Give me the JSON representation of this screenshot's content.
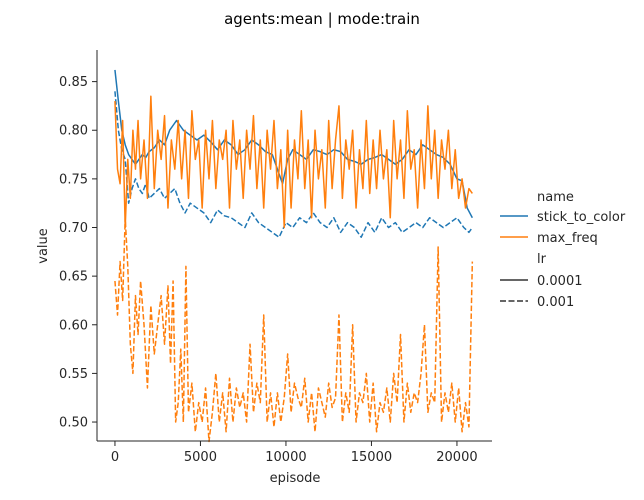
{
  "chart_data": {
    "type": "line",
    "title": "agents:mean | mode:train",
    "xlabel": "episode",
    "ylabel": "value",
    "xlim": [
      -1050,
      22050
    ],
    "ylim": [
      0.4805,
      0.8825
    ],
    "xticks": [
      0,
      5000,
      10000,
      15000,
      20000
    ],
    "xtick_labels": [
      "0",
      "5000",
      "10000",
      "15000",
      "20000"
    ],
    "yticks": [
      0.5,
      0.55,
      0.6,
      0.65,
      0.7,
      0.75,
      0.8,
      0.85
    ],
    "ytick_labels": [
      "0.50",
      "0.55",
      "0.60",
      "0.65",
      "0.70",
      "0.75",
      "0.80",
      "0.85"
    ],
    "grid": false,
    "legend": {
      "placement": "right",
      "hue_title": "name",
      "hue_entries": [
        "stick_to_color",
        "max_freq"
      ],
      "style_title": "lr",
      "style_entries": [
        "0.0001",
        "0.001"
      ]
    },
    "colors": {
      "stick_to_color": "#1f77b4",
      "max_freq": "#ff7f0e",
      "legend_style": "#333333"
    },
    "series": [
      {
        "name": "stick_to_color",
        "lr": "0.0001",
        "dash": "solid",
        "x": [
          0,
          200,
          400,
          600,
          800,
          1000,
          1200,
          1400,
          1600,
          1800,
          2000,
          2300,
          2600,
          2900,
          3200,
          3400,
          3600,
          3800,
          4000,
          4400,
          4800,
          5200,
          5600,
          6000,
          6400,
          6800,
          7200,
          7600,
          8000,
          8400,
          8800,
          9200,
          9500,
          9800,
          10100,
          10400,
          10800,
          11200,
          11600,
          12000,
          12400,
          12800,
          13200,
          13600,
          14000,
          14400,
          14800,
          15200,
          15600,
          16000,
          16400,
          16800,
          17200,
          17600,
          18000,
          18400,
          18800,
          19200,
          19600,
          20000,
          20300,
          20600,
          20900
        ],
        "values": [
          0.862,
          0.83,
          0.8,
          0.785,
          0.775,
          0.77,
          0.765,
          0.77,
          0.775,
          0.772,
          0.778,
          0.782,
          0.79,
          0.785,
          0.8,
          0.805,
          0.81,
          0.805,
          0.8,
          0.795,
          0.79,
          0.795,
          0.788,
          0.78,
          0.79,
          0.785,
          0.775,
          0.78,
          0.79,
          0.785,
          0.778,
          0.775,
          0.76,
          0.745,
          0.77,
          0.78,
          0.775,
          0.77,
          0.78,
          0.778,
          0.775,
          0.78,
          0.778,
          0.77,
          0.768,
          0.765,
          0.77,
          0.772,
          0.775,
          0.77,
          0.765,
          0.77,
          0.78,
          0.775,
          0.785,
          0.78,
          0.775,
          0.772,
          0.765,
          0.75,
          0.748,
          0.72,
          0.71
        ]
      },
      {
        "name": "stick_to_color",
        "lr": "0.001",
        "dash": "dashed",
        "x": [
          0,
          200,
          400,
          600,
          800,
          1000,
          1200,
          1400,
          1600,
          1800,
          2000,
          2300,
          2600,
          2900,
          3200,
          3500,
          3800,
          4100,
          4400,
          4800,
          5200,
          5600,
          6000,
          6400,
          6800,
          7200,
          7600,
          8000,
          8400,
          8800,
          9200,
          9600,
          10000,
          10400,
          10800,
          11200,
          11600,
          12000,
          12400,
          12800,
          13200,
          13600,
          14000,
          14400,
          14800,
          15200,
          15600,
          16000,
          16400,
          16800,
          17200,
          17600,
          18000,
          18400,
          18800,
          19200,
          19600,
          20000,
          20400,
          20700,
          20900
        ],
        "values": [
          0.84,
          0.8,
          0.78,
          0.77,
          0.725,
          0.74,
          0.75,
          0.74,
          0.735,
          0.745,
          0.73,
          0.735,
          0.74,
          0.73,
          0.735,
          0.74,
          0.725,
          0.715,
          0.725,
          0.72,
          0.715,
          0.705,
          0.718,
          0.712,
          0.71,
          0.705,
          0.7,
          0.715,
          0.705,
          0.7,
          0.695,
          0.69,
          0.705,
          0.7,
          0.71,
          0.705,
          0.715,
          0.705,
          0.7,
          0.71,
          0.695,
          0.705,
          0.7,
          0.69,
          0.705,
          0.695,
          0.71,
          0.7,
          0.705,
          0.695,
          0.7,
          0.705,
          0.7,
          0.71,
          0.705,
          0.7,
          0.705,
          0.71,
          0.7,
          0.695,
          0.7
        ]
      },
      {
        "name": "max_freq",
        "lr": "0.0001",
        "dash": "solid",
        "x": [
          0,
          150,
          300,
          450,
          600,
          750,
          900,
          1050,
          1200,
          1350,
          1500,
          1700,
          1900,
          2100,
          2300,
          2500,
          2700,
          2900,
          3100,
          3300,
          3500,
          3700,
          3900,
          4100,
          4300,
          4500,
          4700,
          4900,
          5100,
          5300,
          5500,
          5700,
          5900,
          6100,
          6300,
          6500,
          6700,
          6900,
          7100,
          7300,
          7500,
          7700,
          7900,
          8100,
          8300,
          8500,
          8700,
          8900,
          9100,
          9300,
          9500,
          9700,
          9900,
          10100,
          10300,
          10500,
          10700,
          10900,
          11100,
          11300,
          11500,
          11700,
          11900,
          12100,
          12300,
          12500,
          12700,
          12900,
          13100,
          13300,
          13500,
          13700,
          13900,
          14100,
          14300,
          14500,
          14700,
          14900,
          15100,
          15300,
          15500,
          15700,
          15900,
          16100,
          16300,
          16500,
          16700,
          16900,
          17100,
          17300,
          17500,
          17700,
          17900,
          18100,
          18300,
          18500,
          18700,
          18900,
          19100,
          19300,
          19500,
          19700,
          19900,
          20100,
          20300,
          20500,
          20700,
          20900
        ],
        "values": [
          0.83,
          0.76,
          0.745,
          0.81,
          0.7,
          0.77,
          0.73,
          0.8,
          0.76,
          0.81,
          0.75,
          0.79,
          0.73,
          0.835,
          0.74,
          0.8,
          0.77,
          0.815,
          0.72,
          0.79,
          0.76,
          0.81,
          0.75,
          0.8,
          0.73,
          0.82,
          0.77,
          0.79,
          0.72,
          0.8,
          0.75,
          0.81,
          0.74,
          0.79,
          0.77,
          0.8,
          0.72,
          0.81,
          0.76,
          0.79,
          0.73,
          0.8,
          0.76,
          0.815,
          0.74,
          0.79,
          0.72,
          0.8,
          0.76,
          0.81,
          0.74,
          0.78,
          0.7,
          0.8,
          0.72,
          0.79,
          0.75,
          0.82,
          0.74,
          0.79,
          0.71,
          0.8,
          0.75,
          0.78,
          0.72,
          0.81,
          0.74,
          0.79,
          0.825,
          0.73,
          0.79,
          0.76,
          0.8,
          0.72,
          0.78,
          0.74,
          0.81,
          0.735,
          0.79,
          0.74,
          0.8,
          0.75,
          0.78,
          0.71,
          0.81,
          0.75,
          0.79,
          0.73,
          0.82,
          0.76,
          0.78,
          0.72,
          0.79,
          0.74,
          0.825,
          0.75,
          0.8,
          0.73,
          0.79,
          0.76,
          0.8,
          0.74,
          0.78,
          0.73,
          0.75,
          0.72,
          0.74,
          0.735
        ]
      },
      {
        "name": "max_freq",
        "lr": "0.001",
        "dash": "dashed",
        "x": [
          0,
          150,
          300,
          450,
          600,
          750,
          900,
          1050,
          1200,
          1350,
          1500,
          1700,
          1900,
          2100,
          2300,
          2500,
          2700,
          2900,
          3100,
          3250,
          3400,
          3550,
          3700,
          3850,
          4000,
          4150,
          4300,
          4500,
          4700,
          4900,
          5100,
          5300,
          5500,
          5700,
          5900,
          6100,
          6300,
          6500,
          6700,
          6900,
          7100,
          7300,
          7500,
          7700,
          7900,
          8100,
          8300,
          8500,
          8700,
          8900,
          9100,
          9300,
          9500,
          9700,
          9900,
          10100,
          10300,
          10500,
          10700,
          10900,
          11100,
          11300,
          11500,
          11700,
          11900,
          12100,
          12300,
          12500,
          12700,
          12900,
          13100,
          13300,
          13500,
          13700,
          13900,
          14100,
          14300,
          14500,
          14700,
          14900,
          15100,
          15300,
          15500,
          15700,
          15900,
          16100,
          16300,
          16500,
          16700,
          16900,
          17100,
          17300,
          17500,
          17700,
          17900,
          18100,
          18300,
          18500,
          18700,
          18900,
          19100,
          19300,
          19500,
          19700,
          19900,
          20100,
          20300,
          20500,
          20700,
          20900
        ],
        "values": [
          0.645,
          0.61,
          0.665,
          0.625,
          0.71,
          0.66,
          0.58,
          0.55,
          0.63,
          0.59,
          0.645,
          0.6,
          0.535,
          0.62,
          0.57,
          0.6,
          0.63,
          0.58,
          0.64,
          0.56,
          0.645,
          0.5,
          0.52,
          0.575,
          0.5,
          0.66,
          0.51,
          0.54,
          0.49,
          0.52,
          0.5,
          0.535,
          0.48,
          0.51,
          0.55,
          0.5,
          0.53,
          0.49,
          0.545,
          0.5,
          0.535,
          0.515,
          0.53,
          0.5,
          0.58,
          0.51,
          0.54,
          0.52,
          0.61,
          0.5,
          0.53,
          0.495,
          0.53,
          0.5,
          0.525,
          0.57,
          0.51,
          0.54,
          0.525,
          0.515,
          0.545,
          0.5,
          0.53,
          0.49,
          0.535,
          0.52,
          0.505,
          0.54,
          0.515,
          0.525,
          0.61,
          0.5,
          0.53,
          0.51,
          0.6,
          0.5,
          0.53,
          0.52,
          0.55,
          0.5,
          0.54,
          0.49,
          0.52,
          0.51,
          0.535,
          0.5,
          0.55,
          0.52,
          0.59,
          0.5,
          0.54,
          0.51,
          0.53,
          0.52,
          0.55,
          0.6,
          0.51,
          0.53,
          0.52,
          0.68,
          0.5,
          0.53,
          0.51,
          0.54,
          0.5,
          0.535,
          0.49,
          0.52,
          0.495,
          0.665
        ]
      }
    ]
  }
}
